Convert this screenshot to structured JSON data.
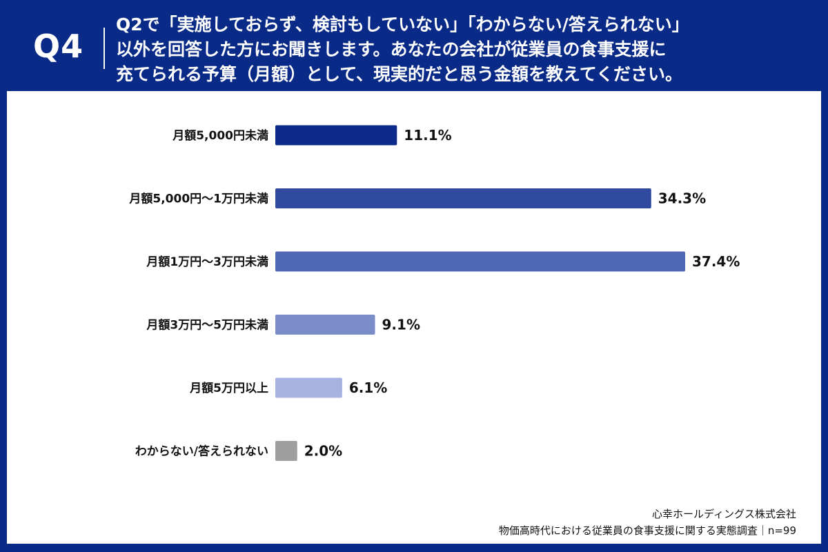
{
  "header": {
    "question_id": "Q4",
    "question_lines": [
      "Q2で「実施しておらず、検討もしていない」「わからない/答えられない」",
      "以外を回答した方にお聞きします。あなたの会社が従業員の食事支援に",
      "充てられる予算（月額）として、現実的だと思う金額を教えてください。"
    ]
  },
  "chart_data": {
    "type": "bar",
    "orientation": "horizontal",
    "categories": [
      "月額5,000円未満",
      "月額5,000円〜1万円未満",
      "月額1万円〜3万円未満",
      "月額3万円〜5万円未満",
      "月額5万円以上",
      "わからない/答えられない"
    ],
    "values": [
      11.1,
      34.3,
      37.4,
      9.1,
      6.1,
      2.0
    ],
    "value_labels": [
      "11.1%",
      "34.3%",
      "37.4%",
      "9.1%",
      "6.1%",
      "2.0%"
    ],
    "colors": [
      "#0b2a8a",
      "#2f4a9f",
      "#5068b5",
      "#7b8dc8",
      "#a8b2e0",
      "#9e9e9e"
    ],
    "xlim": [
      0,
      40
    ],
    "grid": false,
    "legend": "none"
  },
  "footer": {
    "company": "心幸ホールディングス株式会社",
    "survey": "物価高時代における従業員の食事支援に関する実態調査｜n=99"
  }
}
